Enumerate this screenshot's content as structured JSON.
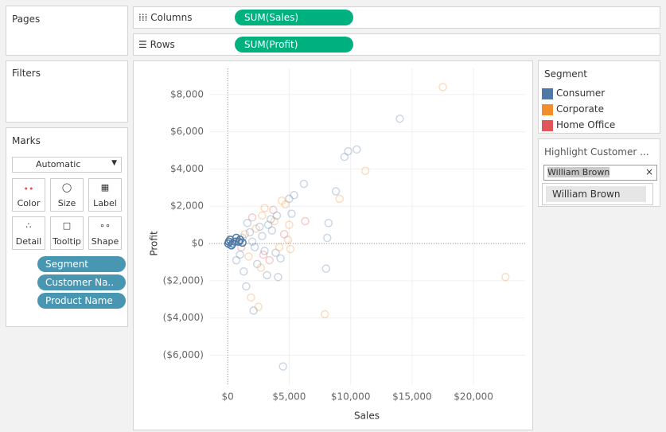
{
  "pages": {
    "title": "Pages"
  },
  "columns": {
    "label": "Columns",
    "pill": "SUM(Sales)"
  },
  "rows": {
    "label": "Rows",
    "pill": "SUM(Profit)"
  },
  "filters": {
    "title": "Filters"
  },
  "marks": {
    "title": "Marks",
    "type": "Automatic",
    "buttons": [
      "Color",
      "Size",
      "Label",
      "Detail",
      "Tooltip",
      "Shape"
    ],
    "pills": [
      "Segment",
      "Customer Na..",
      "Product Name"
    ]
  },
  "legend": {
    "title": "Segment"
  },
  "highlight": {
    "title": "Highlight Customer ...",
    "input": "William Brown",
    "option": "William Brown"
  },
  "chart_data": {
    "type": "scatter",
    "x_label": "Sales",
    "y_label": "Profit",
    "xlim": [
      -1500,
      24200
    ],
    "ylim": [
      -7600,
      9400
    ],
    "xticks": [
      {
        "value": 0,
        "label": "$0"
      },
      {
        "value": 5000,
        "label": "$5,000"
      },
      {
        "value": 10000,
        "label": "$10,000"
      },
      {
        "value": 15000,
        "label": "$15,000"
      },
      {
        "value": 20000,
        "label": "$20,000"
      }
    ],
    "yticks": [
      {
        "value": -6000,
        "label": "($6,000)"
      },
      {
        "value": -4000,
        "label": "($4,000)"
      },
      {
        "value": -2000,
        "label": "($2,000)"
      },
      {
        "value": 0,
        "label": "$0"
      },
      {
        "value": 2000,
        "label": "$2,000"
      },
      {
        "value": 4000,
        "label": "$4,000"
      },
      {
        "value": 6000,
        "label": "$6,000"
      },
      {
        "value": 8000,
        "label": "$8,000"
      }
    ],
    "grid": true,
    "series": [
      {
        "name": "Consumer",
        "color": "#4e79a7",
        "x": [
          14000,
          10500,
          9800,
          9500,
          8800,
          6200,
          8200,
          8100,
          8000,
          4500,
          4100,
          2100,
          1500,
          3200,
          4300,
          3900,
          5400,
          5000,
          5200,
          3500,
          2600,
          1800,
          1200,
          2200,
          1000,
          2800,
          3600,
          4000,
          1600,
          700,
          2400,
          3000,
          1300,
          2000,
          3300
        ],
        "values": [
          6700,
          5050,
          4950,
          4650,
          2800,
          3200,
          1100,
          300,
          -1350,
          -6600,
          -1800,
          -3600,
          -2300,
          -1700,
          -800,
          -500,
          2600,
          2400,
          1600,
          1300,
          900,
          600,
          300,
          -200,
          -600,
          400,
          700,
          1500,
          1100,
          -900,
          -1100,
          -400,
          -1500,
          100,
          1000
        ],
        "highlighted": {
          "x": [
            100,
            200,
            400,
            700,
            900,
            1000,
            300,
            600,
            50,
            1200
          ],
          "values": [
            100,
            200,
            0,
            300,
            100,
            200,
            -100,
            100,
            0,
            50
          ]
        }
      },
      {
        "name": "Corporate",
        "color": "#f28e2b",
        "x": [
          17500,
          22600,
          11200,
          9100,
          7900,
          2500,
          1900,
          4700,
          5000,
          4900,
          3000,
          2800,
          5100,
          4400,
          3800,
          2300,
          1700,
          2700,
          4200,
          1400
        ],
        "values": [
          8400,
          -1800,
          3900,
          2400,
          -3800,
          -3400,
          -2900,
          2100,
          1000,
          200,
          1900,
          1500,
          -300,
          2300,
          1200,
          800,
          -700,
          -1300,
          -200,
          500
        ]
      },
      {
        "name": "Home Office",
        "color": "#e15759",
        "x": [
          3700,
          2900,
          1100,
          4600,
          2000,
          3400,
          6300
        ],
        "values": [
          1800,
          -600,
          -200,
          500,
          1400,
          -900,
          1200
        ]
      }
    ]
  }
}
